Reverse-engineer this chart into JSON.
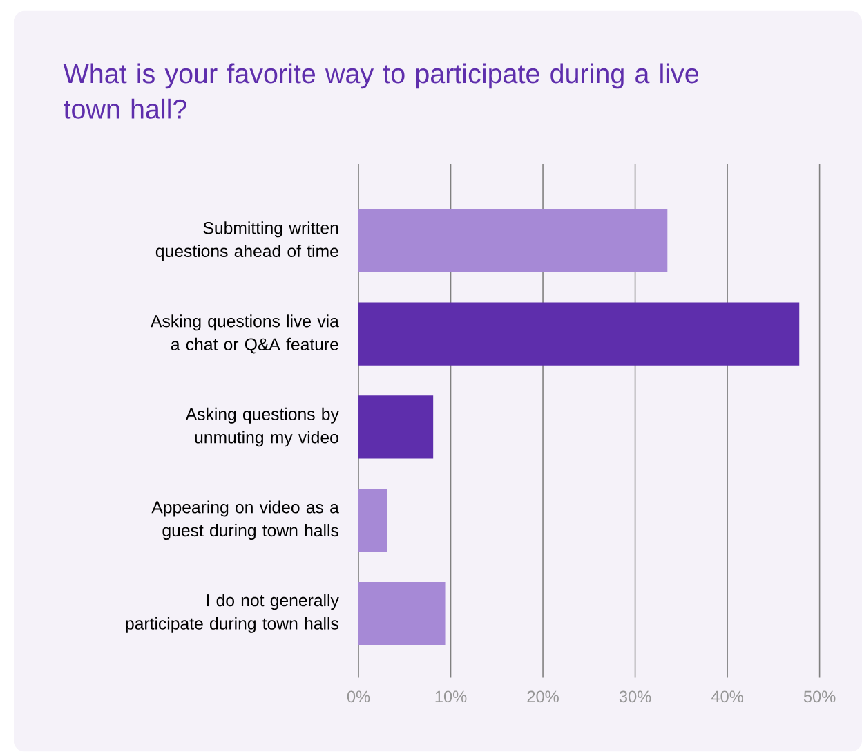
{
  "chart_data": {
    "type": "bar",
    "orientation": "horizontal",
    "title": "What is your favorite way to participate during a live town hall?",
    "categories": [
      "Submitting written questions ahead of time",
      "Asking questions live via a chat or Q&A feature",
      "Asking questions by unmuting my video",
      "Appearing on video as a guest during town halls",
      "I do not generally participate during town halls"
    ],
    "values": [
      33.5,
      47.8,
      8.1,
      3.1,
      9.4
    ],
    "colors": [
      "#a689d6",
      "#5e2eac",
      "#5e2eac",
      "#a689d6",
      "#a689d6"
    ],
    "xlim": [
      0,
      50
    ],
    "xticks": [
      {
        "value": 0,
        "label": "0%"
      },
      {
        "value": 10,
        "label": "10%"
      },
      {
        "value": 20,
        "label": "20%"
      },
      {
        "value": 30,
        "label": "30%"
      },
      {
        "value": 40,
        "label": "40%"
      },
      {
        "value": 50,
        "label": "50%"
      }
    ],
    "grid": "x"
  }
}
